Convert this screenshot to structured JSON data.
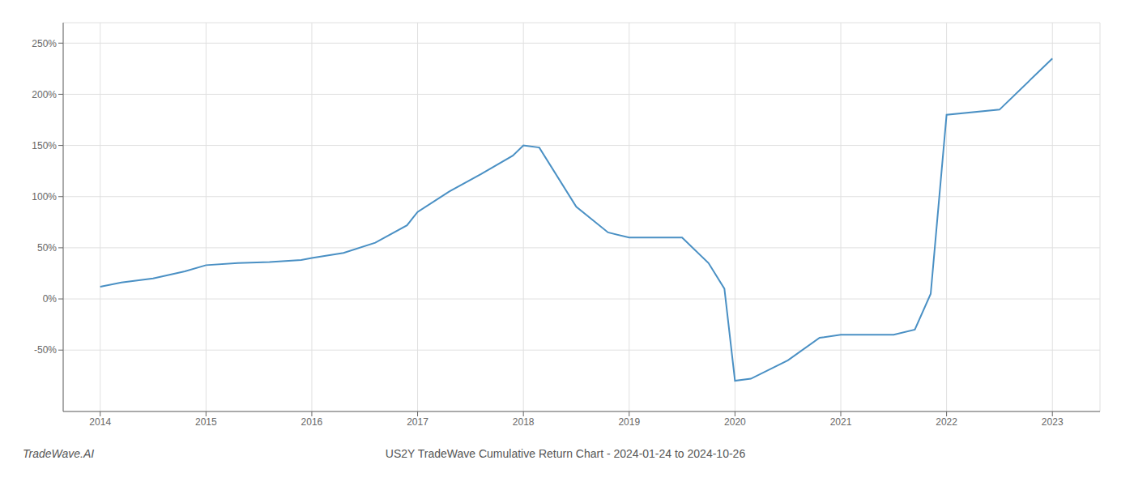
{
  "chart_data": {
    "type": "line",
    "title": "US2Y TradeWave Cumulative Return Chart - 2024-01-24 to 2024-10-26",
    "annotations": [
      "TradeWave.AI"
    ],
    "color": "#4a90c4",
    "grid": true,
    "x": [
      2014.0,
      2014.2,
      2014.5,
      2014.8,
      2015.0,
      2015.3,
      2015.6,
      2015.9,
      2016.0,
      2016.3,
      2016.6,
      2016.9,
      2017.0,
      2017.3,
      2017.6,
      2017.9,
      2018.0,
      2018.15,
      2018.5,
      2018.8,
      2019.0,
      2019.5,
      2019.75,
      2019.9,
      2020.0,
      2020.15,
      2020.5,
      2020.8,
      2021.0,
      2021.5,
      2021.7,
      2021.85,
      2022.0,
      2022.5,
      2023.0
    ],
    "values": [
      12,
      16,
      20,
      27,
      33,
      35,
      36,
      38,
      40,
      45,
      55,
      72,
      85,
      105,
      122,
      140,
      150,
      148,
      90,
      65,
      60,
      60,
      35,
      10,
      -80,
      -78,
      -60,
      -38,
      -35,
      -35,
      -30,
      5,
      180,
      185,
      235
    ],
    "xlim": [
      2013.65,
      2023.45
    ],
    "ylim": [
      -110,
      270
    ],
    "xticks": [
      2014,
      2015,
      2016,
      2017,
      2018,
      2019,
      2020,
      2021,
      2022,
      2023
    ],
    "yticks": [
      {
        "value": -50,
        "label": "-50%"
      },
      {
        "value": 0,
        "label": "0%"
      },
      {
        "value": 50,
        "label": "50%"
      },
      {
        "value": 100,
        "label": "100%"
      },
      {
        "value": 150,
        "label": "150%"
      },
      {
        "value": 200,
        "label": "200%"
      },
      {
        "value": 250,
        "label": "250%"
      }
    ]
  }
}
